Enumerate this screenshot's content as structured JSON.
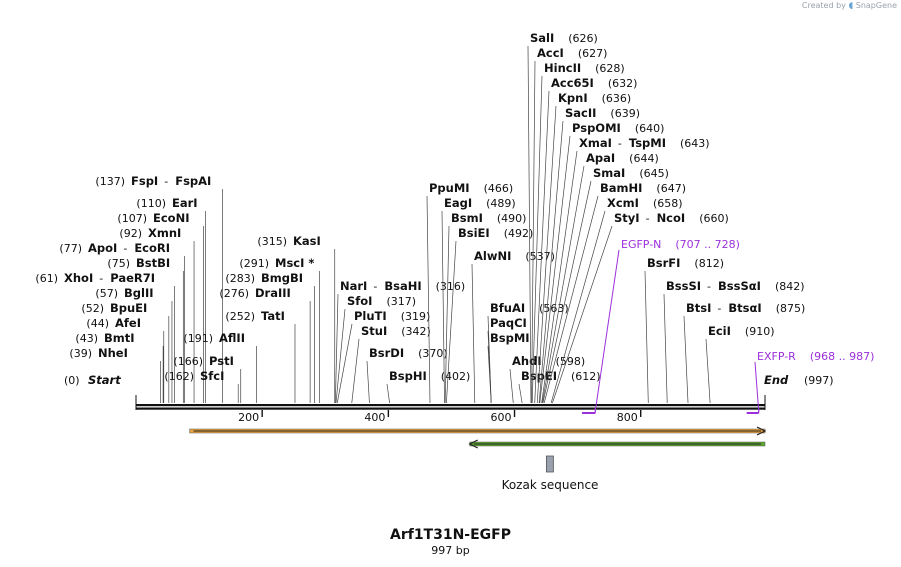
{
  "brand": {
    "created_by": "Created by",
    "app": "SnapGene"
  },
  "map": {
    "name": "Arf1T31N-EGFP",
    "length_label": "997 bp",
    "length": 997,
    "start_label": "Start",
    "start_pos": "(0)",
    "end_label": "End",
    "end_pos": "(997)",
    "ruler_ticks": [
      "200",
      "400",
      "600",
      "800"
    ],
    "ruler_tick_values": [
      200,
      400,
      600,
      800
    ]
  },
  "features": [
    {
      "name": "orange-feature-arrow",
      "start": 85,
      "end": 997,
      "color": "#e6a23c",
      "direction": "forward"
    },
    {
      "name": "green-feature-arrow",
      "start": 529,
      "end": 997,
      "color": "#5fa830",
      "direction": "reverse"
    }
  ],
  "kozak": {
    "label": "Kozak sequence",
    "position": 660
  },
  "primers": [
    {
      "name": "EGFP-N",
      "range": "(707 .. 728)",
      "start": 707,
      "end": 728,
      "direction": "reverse"
    },
    {
      "name": "EXFP-R",
      "range": "(968 .. 987)",
      "start": 968,
      "end": 987,
      "direction": "reverse"
    }
  ],
  "sites": [
    {
      "label": "NheI",
      "pos_label": "(39)",
      "pos": 39,
      "pos_first": true
    },
    {
      "label": "BmtI",
      "pos_label": "(43)",
      "pos": 43,
      "pos_first": true
    },
    {
      "label": "AfeI",
      "pos_label": "(44)",
      "pos": 44,
      "pos_first": true
    },
    {
      "label": "BpuEI",
      "pos_label": "(52)",
      "pos": 52,
      "pos_first": true
    },
    {
      "label": "BglII",
      "pos_label": "(57)",
      "pos": 57,
      "pos_first": true
    },
    {
      "label": "XhoI",
      "alt": "PaeR7I",
      "pos_label": "(61)",
      "pos": 61,
      "pos_first": true
    },
    {
      "label": "BstBI",
      "pos_label": "(75)",
      "pos": 75,
      "pos_first": true
    },
    {
      "label": "ApoI",
      "alt": "EcoRI",
      "pos_label": "(77)",
      "pos": 77,
      "pos_first": true
    },
    {
      "label": "XmnI",
      "pos_label": "(92)",
      "pos": 92,
      "pos_first": true
    },
    {
      "label": "EcoNI",
      "pos_label": "(107)",
      "pos": 107,
      "pos_first": true
    },
    {
      "label": "EarI",
      "pos_label": "(110)",
      "pos": 110,
      "pos_first": true
    },
    {
      "label": "FspI",
      "alt": "FspAI",
      "pos_label": "(137)",
      "pos": 137,
      "pos_first": true
    },
    {
      "label": "SfcI",
      "pos_label": "(162)",
      "pos": 162,
      "pos_first": true
    },
    {
      "label": "PstI",
      "pos_label": "(166)",
      "pos": 166,
      "pos_first": true
    },
    {
      "label": "AflII",
      "pos_label": "(191)",
      "pos": 191,
      "pos_first": true
    },
    {
      "label": "TatI",
      "pos_label": "(252)",
      "pos": 252,
      "pos_first": true
    },
    {
      "label": "DraIII",
      "pos_label": "(276)",
      "pos": 276,
      "pos_first": true
    },
    {
      "label": "BmgBI",
      "pos_label": "(283)",
      "pos": 283,
      "pos_first": true
    },
    {
      "label": "MscI *",
      "pos_label": "(291)",
      "pos": 291,
      "pos_first": true
    },
    {
      "label": "KasI",
      "pos_label": "(315)",
      "pos": 315,
      "pos_first": true
    },
    {
      "label": "NarI",
      "alt": "BsaHI",
      "pos_label": "(316)",
      "pos": 316,
      "pos_first": false
    },
    {
      "label": "SfoI",
      "pos_label": "(317)",
      "pos": 317,
      "pos_first": false
    },
    {
      "label": "PluTI",
      "pos_label": "(319)",
      "pos": 319,
      "pos_first": false
    },
    {
      "label": "StuI",
      "pos_label": "(342)",
      "pos": 342,
      "pos_first": false
    },
    {
      "label": "BsrDI",
      "pos_label": "(370)",
      "pos": 370,
      "pos_first": false
    },
    {
      "label": "BspHI",
      "pos_label": "(402)",
      "pos": 402,
      "pos_first": false
    },
    {
      "label": "PpuMI",
      "pos_label": "(466)",
      "pos": 466,
      "pos_first": false
    },
    {
      "label": "EagI",
      "pos_label": "(489)",
      "pos": 489,
      "pos_first": false
    },
    {
      "label": "BsmI",
      "pos_label": "(490)",
      "pos": 490,
      "pos_first": false
    },
    {
      "label": "BsiEI",
      "pos_label": "(492)",
      "pos": 492,
      "pos_first": false
    },
    {
      "label": "AlwNI",
      "pos_label": "(537)",
      "pos": 537,
      "pos_first": false
    },
    {
      "label": "BfuAI",
      "pos_label": "(563)",
      "pos": 563,
      "pos_first": false
    },
    {
      "label": "PaqCI",
      "pos_label": "",
      "pos": 563,
      "pos_first": false
    },
    {
      "label": "BspMI",
      "pos_label": "",
      "pos": 563,
      "pos_first": false
    },
    {
      "label": "AhdI",
      "pos_label": "(598)",
      "pos": 598,
      "pos_first": false
    },
    {
      "label": "BspEI",
      "pos_label": "(612)",
      "pos": 612,
      "pos_first": false
    },
    {
      "label": "SalI",
      "pos_label": "(626)",
      "pos": 626,
      "pos_first": false
    },
    {
      "label": "AccI",
      "pos_label": "(627)",
      "pos": 627,
      "pos_first": false
    },
    {
      "label": "HincII",
      "pos_label": "(628)",
      "pos": 628,
      "pos_first": false
    },
    {
      "label": "Acc65I",
      "pos_label": "(632)",
      "pos": 632,
      "pos_first": false
    },
    {
      "label": "KpnI",
      "pos_label": "(636)",
      "pos": 636,
      "pos_first": false
    },
    {
      "label": "SacII",
      "pos_label": "(639)",
      "pos": 639,
      "pos_first": false
    },
    {
      "label": "PspOMI",
      "pos_label": "(640)",
      "pos": 640,
      "pos_first": false
    },
    {
      "label": "XmaI",
      "alt": "TspMI",
      "pos_label": "(643)",
      "pos": 643,
      "pos_first": false
    },
    {
      "label": "ApaI",
      "pos_label": "(644)",
      "pos": 644,
      "pos_first": false
    },
    {
      "label": "SmaI",
      "pos_label": "(645)",
      "pos": 645,
      "pos_first": false
    },
    {
      "label": "BamHI",
      "pos_label": "(647)",
      "pos": 647,
      "pos_first": false
    },
    {
      "label": "XcmI",
      "pos_label": "(658)",
      "pos": 658,
      "pos_first": false
    },
    {
      "label": "StyI",
      "alt": "NcoI",
      "pos_label": "(660)",
      "pos": 660,
      "pos_first": false
    },
    {
      "label": "BsrFI",
      "pos_label": "(812)",
      "pos": 812,
      "pos_first": false
    },
    {
      "label": "BssSI",
      "alt": "BssSαI",
      "pos_label": "(842)",
      "pos": 842,
      "pos_first": false
    },
    {
      "label": "BtsI",
      "alt": "BtsαI",
      "pos_label": "(875)",
      "pos": 875,
      "pos_first": false
    },
    {
      "label": "EciI",
      "pos_label": "(910)",
      "pos": 910,
      "pos_first": false
    }
  ]
}
